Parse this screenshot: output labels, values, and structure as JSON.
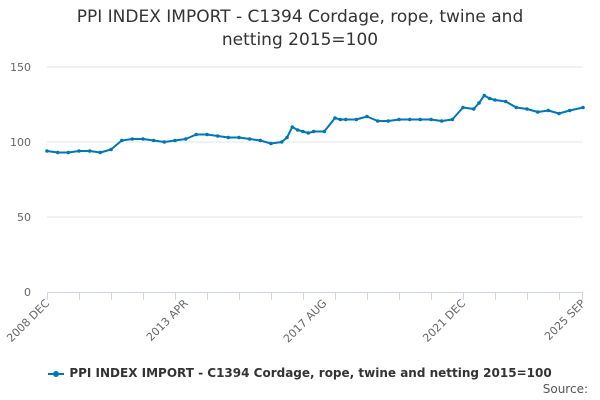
{
  "chart_data": {
    "type": "line",
    "title": [
      "PPI INDEX IMPORT - C1394 Cordage, rope, twine and",
      "netting 2015=100"
    ],
    "xlabel": "",
    "ylabel": "",
    "ylim": [
      0,
      150
    ],
    "yticks": [
      0,
      50,
      100,
      150
    ],
    "x_start": "2008 DEC",
    "x_end": "2025 SEP",
    "xtick_labels": [
      "2008 DEC",
      "2013 APR",
      "2017 AUG",
      "2021 DEC",
      "2025 SEP"
    ],
    "grid": "horizontal",
    "legend_position": "bottom",
    "series": [
      {
        "name": "PPI INDEX IMPORT - C1394 Cordage, rope, twine and netting 2015=100",
        "color": "#0077b3",
        "x": [
          "2008 DEC",
          "2009 APR",
          "2009 AUG",
          "2009 DEC",
          "2010 APR",
          "2010 AUG",
          "2010 DEC",
          "2011 APR",
          "2011 AUG",
          "2011 DEC",
          "2012 APR",
          "2012 AUG",
          "2012 DEC",
          "2013 APR",
          "2013 AUG",
          "2013 DEC",
          "2014 APR",
          "2014 AUG",
          "2014 DEC",
          "2015 APR",
          "2015 AUG",
          "2015 DEC",
          "2016 APR",
          "2016 JUN",
          "2016 AUG",
          "2016 OCT",
          "2016 DEC",
          "2017 FEB",
          "2017 APR",
          "2017 AUG",
          "2017 DEC",
          "2018 FEB",
          "2018 APR",
          "2018 AUG",
          "2018 DEC",
          "2019 APR",
          "2019 AUG",
          "2019 DEC",
          "2020 APR",
          "2020 AUG",
          "2020 DEC",
          "2021 APR",
          "2021 AUG",
          "2021 DEC",
          "2022 APR",
          "2022 JUN",
          "2022 AUG",
          "2022 OCT",
          "2022 DEC",
          "2023 APR",
          "2023 AUG",
          "2023 DEC",
          "2024 APR",
          "2024 AUG",
          "2024 DEC",
          "2025 APR",
          "2025 SEP"
        ],
        "values": [
          94,
          93,
          93,
          94,
          94,
          93,
          95,
          101,
          102,
          102,
          101,
          100,
          101,
          102,
          105,
          105,
          104,
          103,
          103,
          102,
          101,
          99,
          100,
          103,
          110,
          108,
          107,
          106,
          107,
          107,
          116,
          115,
          115,
          115,
          117,
          114,
          114,
          115,
          115,
          115,
          115,
          114,
          115,
          123,
          122,
          126,
          131,
          129,
          128,
          127,
          123,
          122,
          120,
          121,
          119,
          121,
          123
        ]
      }
    ]
  },
  "credits": "Source:"
}
